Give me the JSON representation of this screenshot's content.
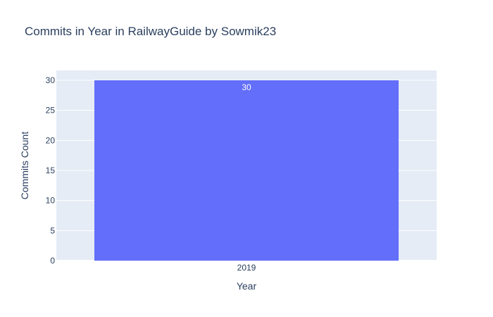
{
  "chart_data": {
    "type": "bar",
    "title": "Commits in Year in RailwayGuide by Sowmik23",
    "xlabel": "Year",
    "ylabel": "Commits Count",
    "categories": [
      "2019"
    ],
    "values": [
      30
    ],
    "data_labels": [
      "30"
    ],
    "ylim": [
      0,
      30
    ],
    "yticks": [
      0,
      5,
      10,
      15,
      20,
      25,
      30
    ],
    "grid": true,
    "legend": "none",
    "colors": {
      "bar": "#636efa",
      "plot_background": "#e5ecf6",
      "gridline": "#ffffff",
      "text": "#2a3f5f"
    }
  }
}
